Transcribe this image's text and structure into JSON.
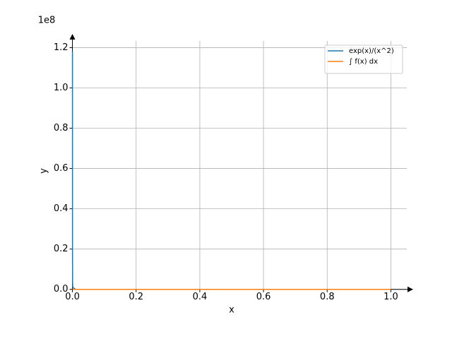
{
  "chart_data": {
    "type": "line",
    "x_label": "x",
    "y_label": "y",
    "y_offset_label": "1e8",
    "x": [
      9.2e-05,
      0.0002,
      0.0005,
      0.001,
      0.01,
      0.1,
      0.5,
      1.0
    ],
    "series": [
      {
        "name": "exp(x)/(x^2)",
        "color": "#1f77b4",
        "values": [
          1.18,
          0.25,
          0.04,
          0.01,
          0.0001,
          0,
          0,
          0
        ]
      },
      {
        "name": "∫ f(x) dx",
        "color": "#ff7f0e",
        "values": [
          0,
          0,
          0,
          0,
          0,
          0,
          0,
          0
        ]
      }
    ],
    "xlim": [
      -0.05,
      1.05
    ],
    "ylim": [
      -0.043,
      1.233
    ],
    "xticks": [
      {
        "value": 0,
        "label": "0.0"
      },
      0.2,
      0.4,
      0.6,
      0.8,
      {
        "value": 1,
        "label": "1.0"
      }
    ],
    "yticks": [
      {
        "value": 0,
        "label": "0.0"
      },
      0.2,
      0.4,
      0.6,
      0.8,
      {
        "value": 1,
        "label": "1.0"
      },
      1.2
    ],
    "grid": true,
    "legend": "upper right"
  }
}
